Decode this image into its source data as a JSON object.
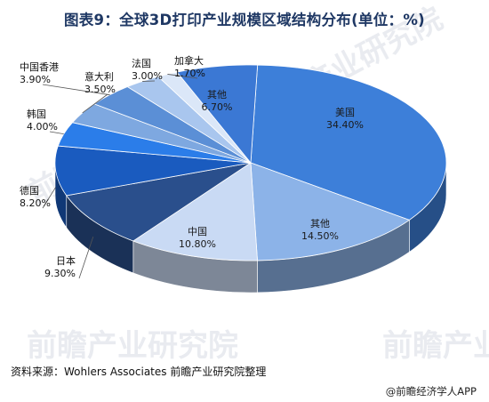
{
  "chart_data": {
    "type": "pie",
    "title": "图表9：全球3D打印产业规模区域结构分布(单位：%)",
    "unit": "%",
    "slices": [
      {
        "name": "美国",
        "value": 34.4,
        "label": "34.40%",
        "color": "#3d7fd9"
      },
      {
        "name": "其他",
        "value": 14.5,
        "label": "14.50%",
        "color": "#8cb3e8"
      },
      {
        "name": "中国",
        "value": 10.8,
        "label": "10.80%",
        "color": "#c9daf4"
      },
      {
        "name": "日本",
        "value": 9.3,
        "label": "9.30%",
        "color": "#2a4f8c"
      },
      {
        "name": "德国",
        "value": 8.2,
        "label": "8.20%",
        "color": "#1a5bbf"
      },
      {
        "name": "韩国",
        "value": 4.0,
        "label": "4.00%",
        "color": "#2b7de9"
      },
      {
        "name": "意大利",
        "value": 3.5,
        "label": "3.50%",
        "color": "#7ea8e0"
      },
      {
        "name": "中国香港",
        "value": 3.9,
        "label": "3.90%",
        "color": "#5b8fd6"
      },
      {
        "name": "法国",
        "value": 3.0,
        "label": "3.00%",
        "color": "#a9c6ee"
      },
      {
        "name": "加拿大",
        "value": 1.7,
        "label": "1.70%",
        "color": "#dbe7f8"
      },
      {
        "name": "其他",
        "value": 6.7,
        "label": "6.70%",
        "color": "#3b78d4"
      }
    ]
  },
  "source": "资料来源：Wohlers Associates 前瞻产业研究院整理",
  "footer": "@前瞻经济学人APP",
  "watermark": "前瞻产业研究院"
}
